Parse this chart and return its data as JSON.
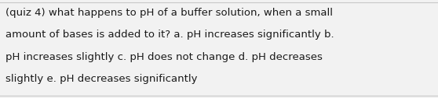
{
  "background_color": "#f2f2f2",
  "border_color": "#c8c8c8",
  "text_color": "#1a1a1a",
  "font_size": 9.5,
  "fig_width": 5.58,
  "fig_height": 1.26,
  "dpi": 100,
  "line1": "(quiz 4) what happens to pH of a buffer solution, when a small",
  "line2": "amount of bases is added to it? a. pH increases significantly b.",
  "line3": "pH increases slightly c. pH does not change d. pH decreases",
  "line4": "slightly e. pH decreases significantly"
}
